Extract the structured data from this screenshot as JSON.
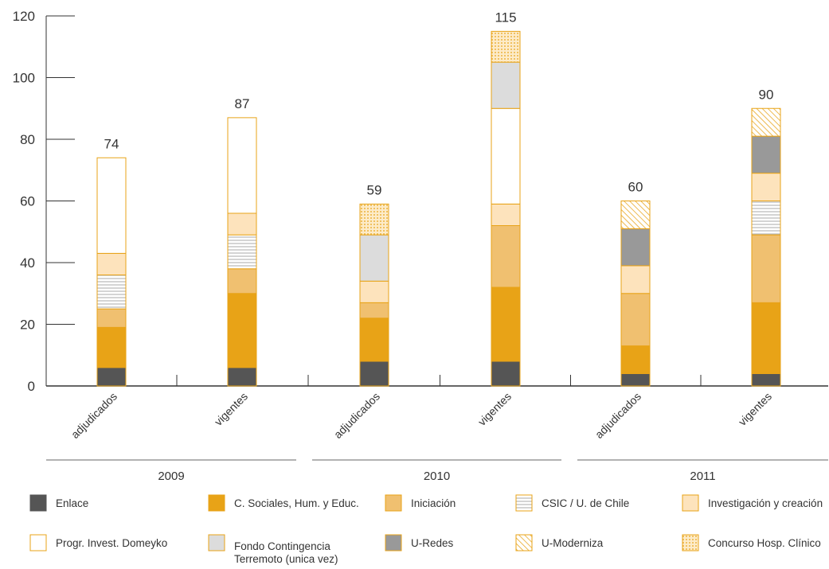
{
  "chart_data": {
    "type": "stacked-bar",
    "categories": [
      "adjudicados",
      "vigentes",
      "adjudicados",
      "vigentes",
      "adjudicados",
      "vigentes"
    ],
    "groups": [
      "2009",
      "2010",
      "2011"
    ],
    "totals": [
      74,
      87,
      59,
      115,
      60,
      90
    ],
    "ylim": [
      0,
      120
    ],
    "yticks": [
      0,
      20,
      40,
      60,
      80,
      100,
      120
    ],
    "series": [
      {
        "name": "Enlace",
        "color": "#555555",
        "values": [
          6,
          6,
          8,
          8,
          4,
          4
        ]
      },
      {
        "name": "C. Sociales, Hum. y Educ.",
        "color": "#e8a317",
        "values": [
          13,
          24,
          14,
          24,
          9,
          23
        ]
      },
      {
        "name": "Iniciación",
        "color": "#f0c070",
        "values": [
          6,
          8,
          5,
          20,
          17,
          22
        ]
      },
      {
        "name": "CSIC / U. de Chile",
        "color": "#aaaaaa",
        "pattern": "lines",
        "values": [
          11,
          11,
          null,
          null,
          null,
          11
        ]
      },
      {
        "name": "Investigación y creación",
        "color": "#fde3bc",
        "values": [
          7,
          7,
          7,
          7,
          9,
          9
        ]
      },
      {
        "name": "Progr. Invest. Domeyko",
        "color": "#ffffff",
        "values": [
          31,
          31,
          null,
          31,
          null,
          null
        ]
      },
      {
        "name": "Fondo Contingencia Terremoto (unica vez)",
        "color": "#dcdcdc",
        "values": [
          null,
          null,
          15,
          15,
          null,
          null
        ]
      },
      {
        "name": "U-Redes",
        "color": "#999999",
        "values": [
          null,
          null,
          null,
          null,
          12,
          12
        ]
      },
      {
        "name": "U-Moderniza",
        "color": "#e8a317",
        "pattern": "hatch",
        "values": [
          null,
          null,
          null,
          null,
          9,
          9
        ]
      },
      {
        "name": "Concurso Hosp. Clínico",
        "color": "#e8a317",
        "pattern": "dots",
        "values": [
          null,
          null,
          10,
          10,
          null,
          null
        ]
      }
    ]
  }
}
